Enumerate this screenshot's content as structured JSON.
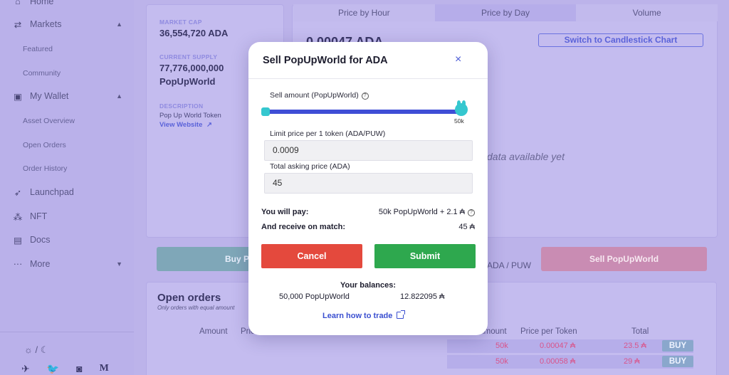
{
  "sidebar": {
    "home": "Home",
    "markets": "Markets",
    "featured": "Featured",
    "community": "Community",
    "my_wallet": "My Wallet",
    "asset_overview": "Asset Overview",
    "open_orders": "Open Orders",
    "order_history": "Order History",
    "launchpad": "Launchpad",
    "nft": "NFT",
    "docs": "Docs",
    "more": "More",
    "theme_toggle": "☼ / ☾"
  },
  "token_info": {
    "market_cap_label": "MARKET CAP",
    "market_cap_value": "36,554,720 ADA",
    "supply_label": "CURRENT SUPPLY",
    "supply_value_1": "77,776,000,000",
    "supply_value_2": "PopUpWorld",
    "description_label": "DESCRIPTION",
    "description_value": "Pop Up World Token",
    "website_link": "View Website"
  },
  "chart_tabs": [
    "Price by Hour",
    "Price by Day",
    "Volume"
  ],
  "price_display": "0.00047 ADA",
  "candlestick_button": "Switch to Candlestick Chart",
  "no_data_text": "data available yet",
  "buy_button": "Buy PopUpWorld",
  "pair_label": "ADA / PUW",
  "sell_button": "Sell PopUpWorld",
  "open_orders": {
    "title": "Open orders",
    "subtitle": "Only orders with equal amount",
    "col_amount": "Amount",
    "col_price": "Price"
  },
  "order_book": {
    "col_amount": "Amount",
    "col_price": "Price per Token",
    "col_total": "Total",
    "rows": [
      {
        "amount": "50k",
        "price": "0.00047 ₳",
        "total": "23.5 ₳",
        "side": "BUY"
      },
      {
        "amount": "50k",
        "price": "0.00058 ₳",
        "total": "29 ₳",
        "side": "BUY"
      }
    ]
  },
  "modal": {
    "title": "Sell PopUpWorld for ADA",
    "close": "×",
    "sell_amount_label": "Sell amount (PopUpWorld)",
    "slider_max_label": "50k",
    "slider_fraction": 1.0,
    "limit_price_label": "Limit price per 1 token (ADA/PUW)",
    "limit_price_value": "0.0009",
    "total_label": "Total asking price (ADA)",
    "total_value": "45",
    "you_pay_label": "You will pay:",
    "you_pay_value": "50k PopUpWorld + 2.1 ₳",
    "receive_label": "And receive on match:",
    "receive_value": "45 ₳",
    "cancel_label": "Cancel",
    "submit_label": "Submit",
    "balances_title": "Your balances:",
    "balance_token": "50,000 PopUpWorld",
    "balance_ada": "12.822095 ₳",
    "learn_link": "Learn how to trade"
  },
  "colors": {
    "backdrop": "#bcb3ea",
    "cancel": "#e4493d",
    "submit": "#2ea84e",
    "slider": "#3f4ed6",
    "accent_link": "#3a4fd0"
  }
}
